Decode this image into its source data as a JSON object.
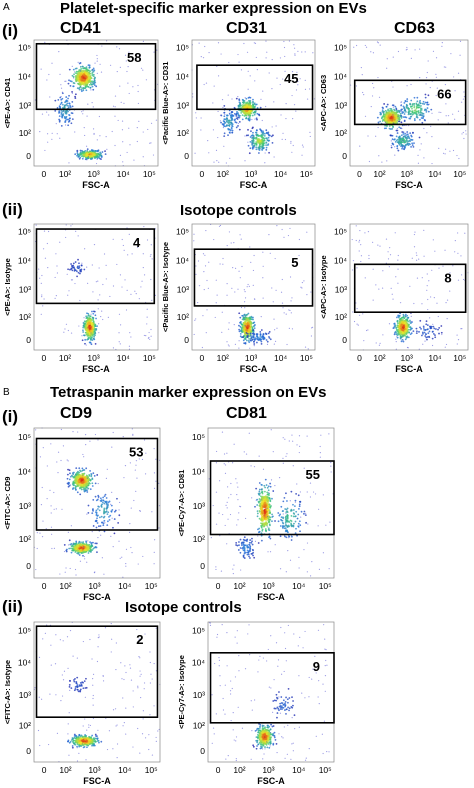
{
  "figure": {
    "panel_a": {
      "letter": "A",
      "title": "Platelet-specific marker expression on EVs",
      "row_i_label": "(i)",
      "row_ii_label": "(ii)",
      "row_ii_title": "Isotope controls"
    },
    "panel_b": {
      "letter": "B",
      "title": "Tetraspanin marker expression on EVs",
      "row_i_label": "(i)",
      "row_ii_label": "(ii)",
      "row_ii_title": "Isotope controls"
    }
  },
  "chart_data": [
    {
      "type": "scatter",
      "title": "CD41",
      "xlabel": "FSC-A",
      "ylabel": "<PE-A>: CD41",
      "gate_percent": "58",
      "x_ticks": [
        "0",
        "10²",
        "10³",
        "10⁴",
        "10⁵"
      ],
      "y_ticks": [
        "0",
        "10²",
        "10³",
        "10⁴",
        "10⁵"
      ]
    },
    {
      "type": "scatter",
      "title": "CD31",
      "xlabel": "FSC-A",
      "ylabel": "<Pacific Blue-A>: CD31",
      "gate_percent": "45",
      "x_ticks": [
        "0",
        "10²",
        "10³",
        "10⁴",
        "10⁵"
      ],
      "y_ticks": [
        "0",
        "10²",
        "10³",
        "10⁴",
        "10⁵"
      ]
    },
    {
      "type": "scatter",
      "title": "CD63",
      "xlabel": "FSC-A",
      "ylabel": "<APC-A>: CD63",
      "gate_percent": "66",
      "x_ticks": [
        "0",
        "10²",
        "10³",
        "10⁴",
        "10⁵"
      ],
      "y_ticks": [
        "0",
        "10²",
        "10³",
        "10⁴",
        "10⁵"
      ]
    },
    {
      "type": "scatter",
      "title": "",
      "xlabel": "FSC-A",
      "ylabel": "<PE-A>: Isotype",
      "gate_percent": "4",
      "x_ticks": [
        "0",
        "10²",
        "10³",
        "10⁴",
        "10⁵"
      ],
      "y_ticks": [
        "0",
        "10²",
        "10³",
        "10⁴",
        "10⁵"
      ]
    },
    {
      "type": "scatter",
      "title": "",
      "xlabel": "FSC-A",
      "ylabel": "<Pacific Blue-A>: Isotype",
      "gate_percent": "5",
      "x_ticks": [
        "0",
        "10²",
        "10³",
        "10⁴",
        "10⁵"
      ],
      "y_ticks": [
        "0",
        "10²",
        "10³",
        "10⁴",
        "10⁵"
      ]
    },
    {
      "type": "scatter",
      "title": "",
      "xlabel": "FSC-A",
      "ylabel": "<APC-A>: Isotype",
      "gate_percent": "8",
      "x_ticks": [
        "0",
        "10²",
        "10³",
        "10⁴",
        "10⁵"
      ],
      "y_ticks": [
        "0",
        "10²",
        "10³",
        "10⁴",
        "10⁵"
      ]
    },
    {
      "type": "scatter",
      "title": "CD9",
      "xlabel": "FSC-A",
      "ylabel": "<FITC-A>: CD9",
      "gate_percent": "53",
      "x_ticks": [
        "0",
        "10²",
        "10³",
        "10⁴",
        "10⁵"
      ],
      "y_ticks": [
        "0",
        "10²",
        "10³",
        "10⁴",
        "10⁵"
      ]
    },
    {
      "type": "scatter",
      "title": "CD81",
      "xlabel": "FSC-A",
      "ylabel": "<PE-Cy7-A>: CD81",
      "gate_percent": "55",
      "x_ticks": [
        "0",
        "10²",
        "10³",
        "10⁴",
        "10⁵"
      ],
      "y_ticks": [
        "0",
        "10²",
        "10³",
        "10⁴",
        "10⁵"
      ]
    },
    {
      "type": "scatter",
      "title": "",
      "xlabel": "FSC-A",
      "ylabel": "<FITC-A>: Isotype",
      "gate_percent": "2",
      "x_ticks": [
        "0",
        "10²",
        "10³",
        "10⁴",
        "10⁵"
      ],
      "y_ticks": [
        "0",
        "10²",
        "10³",
        "10⁴",
        "10⁵"
      ]
    },
    {
      "type": "scatter",
      "title": "",
      "xlabel": "FSC-A",
      "ylabel": "<PE-Cy7-A>: Isotype",
      "gate_percent": "9",
      "x_ticks": [
        "0",
        "10²",
        "10³",
        "10⁴",
        "10⁵"
      ],
      "y_ticks": [
        "0",
        "10²",
        "10³",
        "10⁴",
        "10⁵"
      ]
    }
  ]
}
